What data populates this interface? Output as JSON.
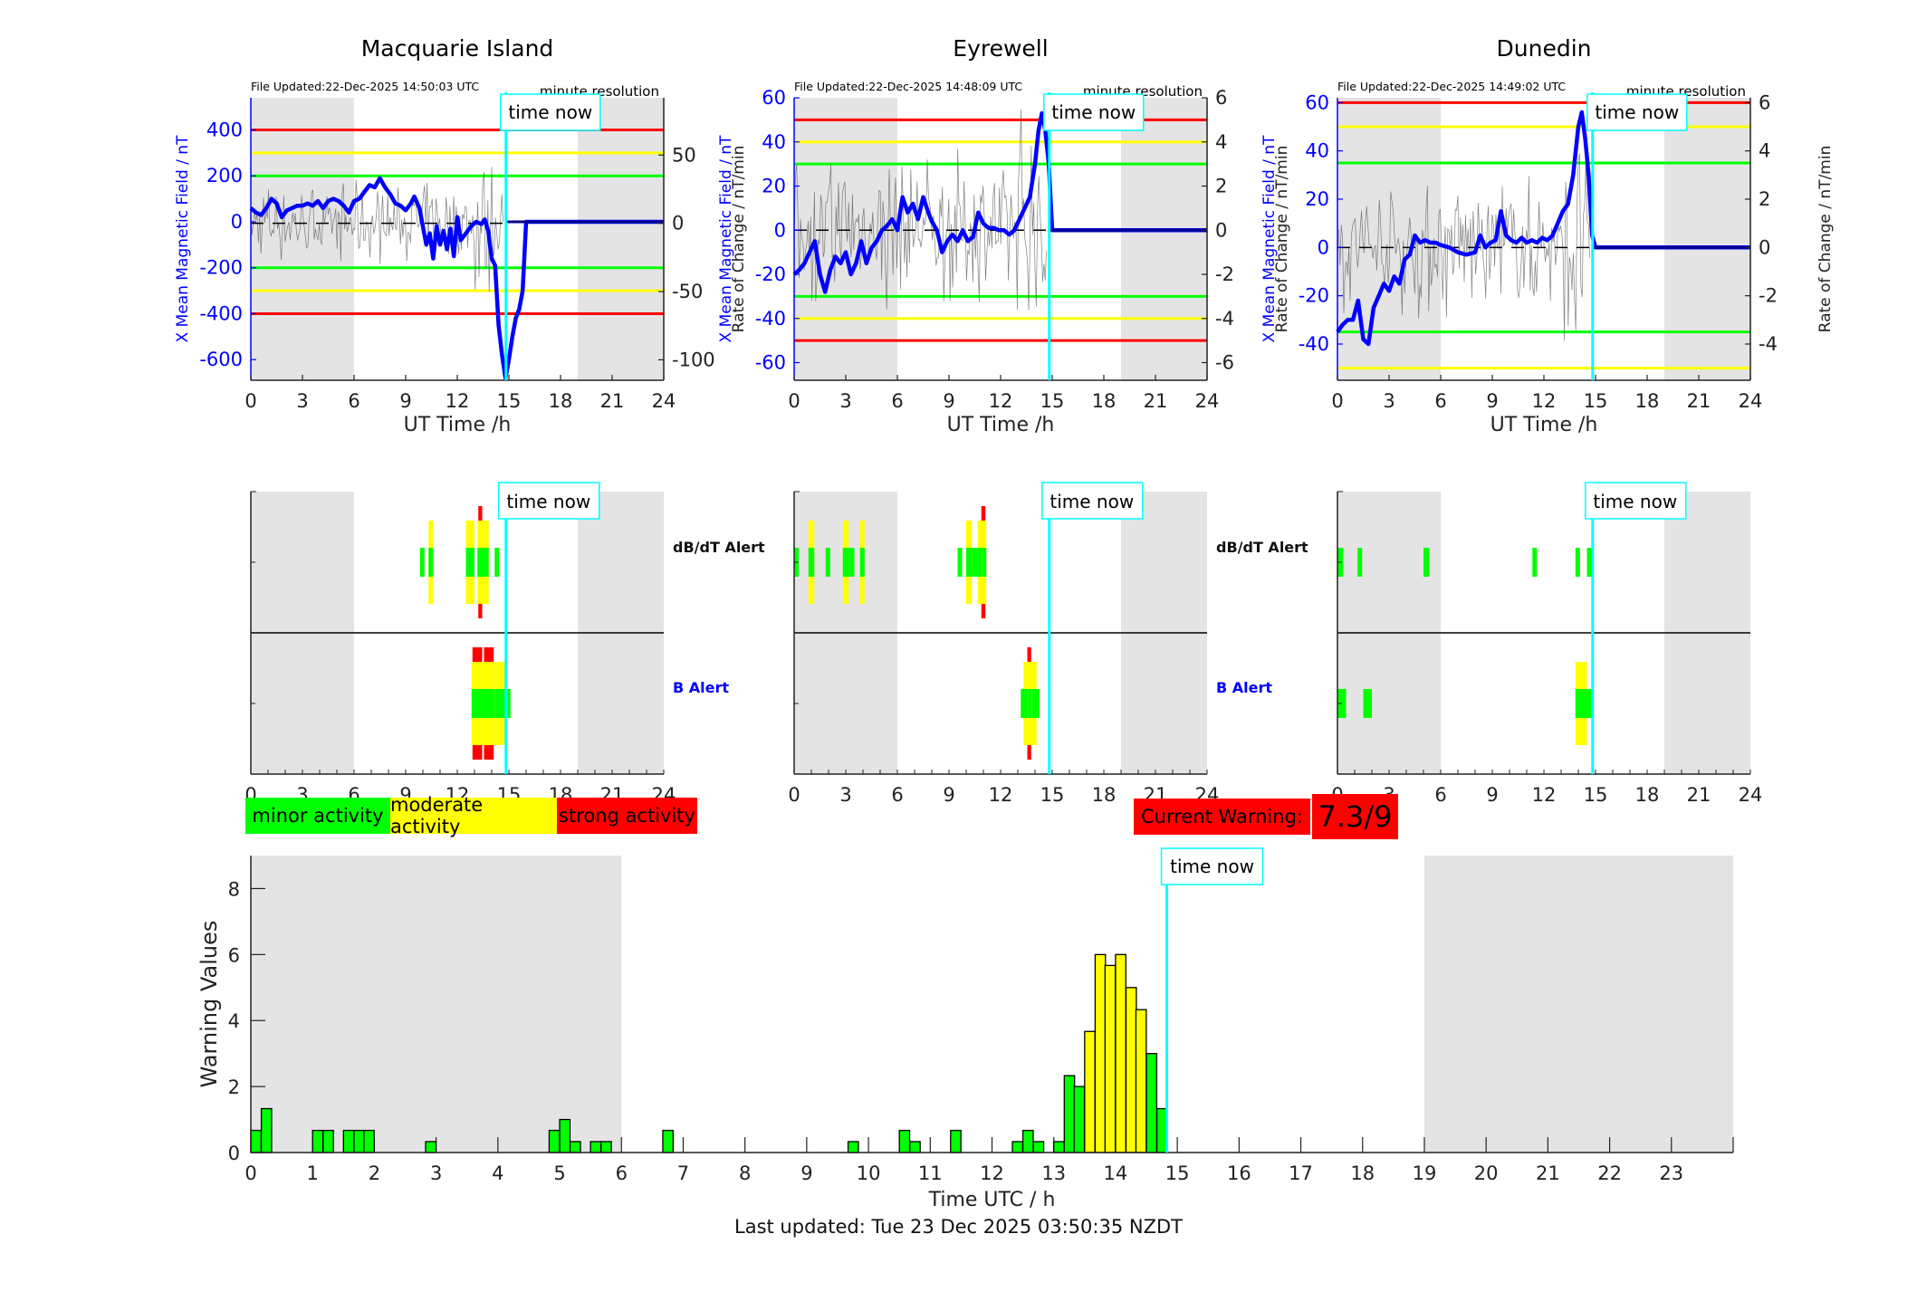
{
  "stations": [
    {
      "name": "Macquarie Island",
      "file_updated": "File Updated:22-Dec-2025 14:50:03 UTC",
      "resolution": "minute resolution",
      "left_axis": {
        "label": "X Mean Magnetic Field / nT",
        "ticks": [
          400,
          200,
          0,
          -200,
          -400,
          -600
        ],
        "range": [
          -690,
          540
        ]
      },
      "right_axis": {
        "label": "Rate of Change / nT/min",
        "ticks": [
          50,
          0,
          -50,
          -100
        ],
        "range": [
          -115,
          92
        ]
      },
      "thresholds": {
        "red": [
          400,
          -400
        ],
        "yellow": [
          300,
          -300
        ],
        "green": [
          200,
          -200
        ]
      },
      "x_label": "UT Time /h",
      "x_ticks": [
        0,
        3,
        6,
        9,
        12,
        15,
        18,
        21,
        24
      ],
      "night_shading": [
        [
          0,
          6
        ],
        [
          19,
          24
        ]
      ],
      "time_now_h": 14.83,
      "time_now_label": "time now",
      "field_series": [
        [
          0,
          60
        ],
        [
          0.3,
          40
        ],
        [
          0.6,
          30
        ],
        [
          0.9,
          60
        ],
        [
          1.2,
          100
        ],
        [
          1.5,
          80
        ],
        [
          1.8,
          20
        ],
        [
          2.1,
          50
        ],
        [
          2.4,
          60
        ],
        [
          2.7,
          70
        ],
        [
          3.0,
          70
        ],
        [
          3.3,
          80
        ],
        [
          3.6,
          70
        ],
        [
          3.9,
          90
        ],
        [
          4.2,
          60
        ],
        [
          4.5,
          90
        ],
        [
          4.8,
          100
        ],
        [
          5.1,
          90
        ],
        [
          5.4,
          70
        ],
        [
          5.7,
          40
        ],
        [
          6.0,
          90
        ],
        [
          6.3,
          100
        ],
        [
          6.6,
          130
        ],
        [
          6.9,
          160
        ],
        [
          7.2,
          150
        ],
        [
          7.5,
          190
        ],
        [
          7.8,
          150
        ],
        [
          8.1,
          120
        ],
        [
          8.4,
          80
        ],
        [
          8.7,
          70
        ],
        [
          9.0,
          50
        ],
        [
          9.3,
          80
        ],
        [
          9.5,
          110
        ],
        [
          9.8,
          60
        ],
        [
          10.0,
          -20
        ],
        [
          10.2,
          -100
        ],
        [
          10.4,
          -50
        ],
        [
          10.6,
          -160
        ],
        [
          10.8,
          -20
        ],
        [
          11.0,
          -100
        ],
        [
          11.2,
          -40
        ],
        [
          11.4,
          -120
        ],
        [
          11.6,
          -30
        ],
        [
          11.8,
          -150
        ],
        [
          12.0,
          20
        ],
        [
          12.2,
          -80
        ],
        [
          12.5,
          -50
        ],
        [
          12.8,
          -20
        ],
        [
          13.1,
          0
        ],
        [
          13.4,
          -10
        ],
        [
          13.6,
          10
        ],
        [
          13.8,
          -40
        ],
        [
          14.0,
          -160
        ],
        [
          14.2,
          -190
        ],
        [
          14.4,
          -450
        ],
        [
          14.6,
          -580
        ],
        [
          14.8,
          -680
        ],
        [
          15.0,
          -600
        ],
        [
          15.2,
          -500
        ],
        [
          15.4,
          -420
        ],
        [
          15.6,
          -380
        ],
        [
          15.8,
          -300
        ],
        [
          16.0,
          0
        ],
        [
          24,
          0
        ]
      ],
      "rate_series_amplitude": 25
    },
    {
      "name": "Eyrewell",
      "file_updated": "File Updated:22-Dec-2025 14:48:09 UTC",
      "resolution": "minute resolution",
      "left_axis": {
        "label": "X Mean Magnetic Field / nT",
        "ticks": [
          60,
          40,
          20,
          0,
          -20,
          -40,
          -60
        ],
        "range": [
          -68,
          60
        ]
      },
      "right_axis": {
        "label": "Rate of Change / nT/min",
        "ticks": [
          6,
          4,
          2,
          0,
          -2,
          -4,
          -6
        ],
        "range": [
          -6.8,
          6
        ]
      },
      "thresholds": {
        "red": [
          50,
          -50
        ],
        "yellow": [
          40,
          -40
        ],
        "green": [
          30,
          -30
        ]
      },
      "x_label": "UT Time /h",
      "x_ticks": [
        0,
        3,
        6,
        9,
        12,
        15,
        18,
        21,
        24
      ],
      "night_shading": [
        [
          0,
          6
        ],
        [
          19,
          24
        ]
      ],
      "time_now_h": 14.83,
      "time_now_label": "time now",
      "field_series": [
        [
          0,
          -20
        ],
        [
          0.3,
          -18
        ],
        [
          0.6,
          -15
        ],
        [
          0.9,
          -10
        ],
        [
          1.2,
          -5
        ],
        [
          1.5,
          -20
        ],
        [
          1.8,
          -28
        ],
        [
          2.1,
          -18
        ],
        [
          2.4,
          -12
        ],
        [
          2.7,
          -15
        ],
        [
          3.0,
          -10
        ],
        [
          3.3,
          -20
        ],
        [
          3.6,
          -15
        ],
        [
          3.9,
          -5
        ],
        [
          4.2,
          -15
        ],
        [
          4.5,
          -8
        ],
        [
          4.8,
          -5
        ],
        [
          5.1,
          0
        ],
        [
          5.4,
          2
        ],
        [
          5.7,
          5
        ],
        [
          6.0,
          0
        ],
        [
          6.3,
          15
        ],
        [
          6.6,
          8
        ],
        [
          6.9,
          12
        ],
        [
          7.2,
          5
        ],
        [
          7.5,
          15
        ],
        [
          7.8,
          8
        ],
        [
          8.0,
          4
        ],
        [
          8.3,
          0
        ],
        [
          8.6,
          -10
        ],
        [
          8.9,
          -5
        ],
        [
          9.2,
          -2
        ],
        [
          9.5,
          -5
        ],
        [
          9.8,
          0
        ],
        [
          10.1,
          -5
        ],
        [
          10.4,
          -3
        ],
        [
          10.7,
          8
        ],
        [
          11.0,
          3
        ],
        [
          11.3,
          1
        ],
        [
          11.6,
          1
        ],
        [
          11.9,
          0
        ],
        [
          12.2,
          0
        ],
        [
          12.5,
          -2
        ],
        [
          12.8,
          0
        ],
        [
          13.1,
          5
        ],
        [
          13.4,
          10
        ],
        [
          13.7,
          15
        ],
        [
          14.0,
          30
        ],
        [
          14.2,
          45
        ],
        [
          14.4,
          53
        ],
        [
          14.6,
          45
        ],
        [
          14.8,
          30
        ],
        [
          15.0,
          0
        ],
        [
          24,
          0
        ]
      ],
      "rate_series_amplitude": 3
    },
    {
      "name": "Dunedin",
      "file_updated": "File Updated:22-Dec-2025 14:49:02 UTC",
      "resolution": "minute resolution",
      "left_axis": {
        "label": "X Mean Magnetic Field / nT",
        "ticks": [
          60,
          40,
          20,
          0,
          -20,
          -40
        ],
        "range": [
          -55,
          62
        ]
      },
      "right_axis": {
        "label": "Rate of Change / nT/min",
        "ticks": [
          6,
          4,
          2,
          0,
          -2,
          -4
        ],
        "range": [
          -5.5,
          6.2
        ]
      },
      "thresholds": {
        "red": [
          60
        ],
        "yellow": [
          50,
          -50
        ],
        "green": [
          35,
          -35
        ]
      },
      "x_label": "UT Time /h",
      "x_ticks": [
        0,
        3,
        6,
        9,
        12,
        15,
        18,
        21,
        24
      ],
      "night_shading": [
        [
          0,
          6
        ],
        [
          19,
          24
        ]
      ],
      "time_now_h": 14.83,
      "time_now_label": "time now",
      "field_series": [
        [
          0,
          -35
        ],
        [
          0.3,
          -32
        ],
        [
          0.6,
          -30
        ],
        [
          0.9,
          -30
        ],
        [
          1.2,
          -22
        ],
        [
          1.5,
          -38
        ],
        [
          1.8,
          -40
        ],
        [
          2.1,
          -25
        ],
        [
          2.4,
          -20
        ],
        [
          2.7,
          -15
        ],
        [
          3.0,
          -18
        ],
        [
          3.3,
          -12
        ],
        [
          3.6,
          -15
        ],
        [
          3.9,
          -5
        ],
        [
          4.2,
          -3
        ],
        [
          4.5,
          5
        ],
        [
          4.8,
          2
        ],
        [
          5.1,
          3
        ],
        [
          5.4,
          2
        ],
        [
          5.7,
          2
        ],
        [
          6.0,
          1
        ],
        [
          6.5,
          0
        ],
        [
          7.0,
          -2
        ],
        [
          7.5,
          -3
        ],
        [
          8.0,
          -2
        ],
        [
          8.3,
          5
        ],
        [
          8.6,
          0
        ],
        [
          8.9,
          2
        ],
        [
          9.2,
          3
        ],
        [
          9.5,
          15
        ],
        [
          9.8,
          5
        ],
        [
          10.1,
          3
        ],
        [
          10.4,
          2
        ],
        [
          10.7,
          4
        ],
        [
          11.0,
          2
        ],
        [
          11.3,
          3
        ],
        [
          11.6,
          2
        ],
        [
          11.9,
          4
        ],
        [
          12.2,
          3
        ],
        [
          12.5,
          5
        ],
        [
          12.8,
          10
        ],
        [
          13.1,
          15
        ],
        [
          13.4,
          18
        ],
        [
          13.7,
          30
        ],
        [
          14.0,
          50
        ],
        [
          14.2,
          56
        ],
        [
          14.4,
          45
        ],
        [
          14.6,
          30
        ],
        [
          14.8,
          5
        ],
        [
          15.0,
          0
        ],
        [
          24,
          0
        ]
      ],
      "rate_series_amplitude": 2.5
    }
  ],
  "alerts": {
    "dbdt_label": "dB/dT Alert",
    "b_label": "B Alert",
    "x_ticks": [
      0,
      3,
      6,
      9,
      12,
      15,
      18,
      21,
      24
    ],
    "time_now_label": "time now",
    "panels": [
      {
        "station": "Macquarie Island",
        "dbdt": [
          [
            9.83,
            10.0,
            1
          ],
          [
            10.33,
            10.5,
            2
          ],
          [
            12.5,
            13.0,
            2
          ],
          [
            13.17,
            13.5,
            3
          ],
          [
            13.5,
            13.83,
            2
          ],
          [
            14.17,
            14.33,
            1
          ]
        ],
        "b": [
          [
            12.83,
            13.5,
            3
          ],
          [
            13.5,
            14.17,
            3
          ],
          [
            14.17,
            14.83,
            2
          ],
          [
            14.83,
            14.95,
            1
          ]
        ]
      },
      {
        "station": "Eyrewell",
        "dbdt": [
          [
            0.0,
            0.17,
            1
          ],
          [
            0.83,
            1.17,
            2
          ],
          [
            1.83,
            2.0,
            1
          ],
          [
            2.83,
            3.17,
            2
          ],
          [
            3.17,
            3.5,
            1
          ],
          [
            3.83,
            4.0,
            2
          ],
          [
            9.5,
            9.67,
            1
          ],
          [
            10.0,
            10.33,
            2
          ],
          [
            10.33,
            10.67,
            1
          ],
          [
            10.67,
            10.83,
            2
          ],
          [
            10.83,
            11.17,
            3
          ]
        ],
        "b": [
          [
            13.5,
            13.83,
            3
          ],
          [
            13.33,
            13.5,
            2
          ],
          [
            13.83,
            14.0,
            2
          ],
          [
            13.17,
            13.33,
            1
          ],
          [
            14.0,
            14.17,
            1
          ]
        ]
      },
      {
        "station": "Dunedin",
        "dbdt": [
          [
            0.0,
            0.33,
            1
          ],
          [
            1.17,
            1.33,
            1
          ],
          [
            5.0,
            5.33,
            1
          ],
          [
            11.33,
            11.5,
            1
          ],
          [
            13.83,
            14.0,
            1
          ],
          [
            14.5,
            14.67,
            1
          ]
        ],
        "b": [
          [
            0.0,
            0.5,
            1
          ],
          [
            1.5,
            2.0,
            1
          ],
          [
            13.83,
            14.5,
            2
          ],
          [
            14.5,
            14.83,
            1
          ]
        ]
      }
    ]
  },
  "legend": {
    "minor": "minor activity",
    "moderate": "moderate activity",
    "strong": "strong activity",
    "current_warning_label": "Current Warning:",
    "current_warning_value": "7.3/9"
  },
  "colors": {
    "minor": "#00ff00",
    "moderate": "#ffff00",
    "strong": "#ff0000",
    "field": "#0000ff",
    "time_now": "#00ffff",
    "night": "#e4e4e4",
    "rate": "#555555"
  },
  "chart_data": {
    "type": "bar",
    "title": "",
    "xlabel": "Time UTC / h",
    "ylabel": "Warning Values",
    "xlim": [
      0,
      24
    ],
    "ylim": [
      0,
      9
    ],
    "x_ticks": [
      0,
      1,
      2,
      3,
      4,
      5,
      6,
      7,
      8,
      9,
      10,
      11,
      12,
      13,
      14,
      15,
      16,
      17,
      18,
      19,
      20,
      21,
      22,
      23
    ],
    "y_ticks": [
      0,
      2,
      4,
      6,
      8
    ],
    "bin_width_h": 0.1667,
    "night_shading": [
      [
        0,
        6
      ],
      [
        19,
        24
      ]
    ],
    "time_now_h": 14.83,
    "time_now_label": "time now",
    "bars": [
      {
        "x": 0.0,
        "value": 0.67,
        "level": "minor"
      },
      {
        "x": 0.17,
        "value": 1.33,
        "level": "minor"
      },
      {
        "x": 1.0,
        "value": 0.67,
        "level": "minor"
      },
      {
        "x": 1.17,
        "value": 0.67,
        "level": "minor"
      },
      {
        "x": 1.5,
        "value": 0.67,
        "level": "minor"
      },
      {
        "x": 1.67,
        "value": 0.67,
        "level": "minor"
      },
      {
        "x": 1.83,
        "value": 0.67,
        "level": "minor"
      },
      {
        "x": 2.83,
        "value": 0.33,
        "level": "minor"
      },
      {
        "x": 4.83,
        "value": 0.67,
        "level": "minor"
      },
      {
        "x": 5.0,
        "value": 1.0,
        "level": "minor"
      },
      {
        "x": 5.17,
        "value": 0.33,
        "level": "minor"
      },
      {
        "x": 5.5,
        "value": 0.33,
        "level": "minor"
      },
      {
        "x": 5.67,
        "value": 0.33,
        "level": "minor"
      },
      {
        "x": 6.67,
        "value": 0.67,
        "level": "minor"
      },
      {
        "x": 9.67,
        "value": 0.33,
        "level": "minor"
      },
      {
        "x": 10.5,
        "value": 0.67,
        "level": "minor"
      },
      {
        "x": 10.67,
        "value": 0.33,
        "level": "minor"
      },
      {
        "x": 11.33,
        "value": 0.67,
        "level": "minor"
      },
      {
        "x": 12.33,
        "value": 0.33,
        "level": "minor"
      },
      {
        "x": 12.5,
        "value": 0.67,
        "level": "minor"
      },
      {
        "x": 12.67,
        "value": 0.33,
        "level": "minor"
      },
      {
        "x": 13.0,
        "value": 0.33,
        "level": "minor"
      },
      {
        "x": 13.17,
        "value": 2.33,
        "level": "minor"
      },
      {
        "x": 13.33,
        "value": 2.0,
        "level": "minor"
      },
      {
        "x": 13.5,
        "value": 3.67,
        "level": "moderate"
      },
      {
        "x": 13.67,
        "value": 6.0,
        "level": "moderate"
      },
      {
        "x": 13.83,
        "value": 5.67,
        "level": "moderate"
      },
      {
        "x": 14.0,
        "value": 6.0,
        "level": "moderate"
      },
      {
        "x": 14.17,
        "value": 5.0,
        "level": "moderate"
      },
      {
        "x": 14.33,
        "value": 4.33,
        "level": "moderate"
      },
      {
        "x": 14.5,
        "value": 3.0,
        "level": "minor"
      },
      {
        "x": 14.67,
        "value": 1.33,
        "level": "minor"
      }
    ]
  },
  "footer": {
    "last_updated": "Last updated: Tue 23 Dec 2025 03:50:35 NZDT"
  }
}
